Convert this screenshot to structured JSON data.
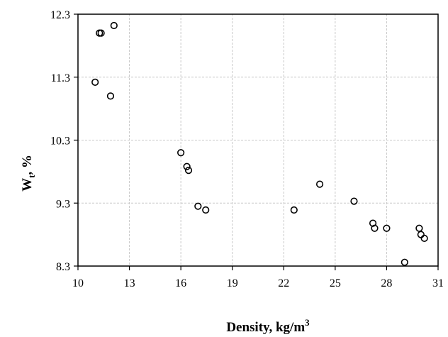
{
  "chart_data": {
    "type": "scatter",
    "title": "",
    "xlabel": "Density, kg/m",
    "xlabel_superscript": "3",
    "ylabel": "W",
    "ylabel_subscript": "t",
    "ylabel_suffix": ",  %",
    "xlim": [
      10,
      31
    ],
    "ylim": [
      8.3,
      12.3
    ],
    "x_ticks": [
      10,
      13,
      16,
      19,
      22,
      25,
      28,
      31
    ],
    "y_ticks": [
      8.3,
      9.3,
      10.3,
      11.3,
      12.3
    ],
    "x_tick_labels": [
      "10",
      "13",
      "16",
      "19",
      "22",
      "25",
      "28",
      "31"
    ],
    "y_tick_labels": [
      "8.3",
      "9.3",
      "10.3",
      "11.3",
      "12.3"
    ],
    "grid": true,
    "legend": false,
    "marker": "open-circle",
    "marker_color": "#000000",
    "points": [
      {
        "x": 11.0,
        "y": 11.22
      },
      {
        "x": 11.25,
        "y": 12.0
      },
      {
        "x": 11.35,
        "y": 12.0
      },
      {
        "x": 11.9,
        "y": 11.0
      },
      {
        "x": 12.1,
        "y": 12.12
      },
      {
        "x": 16.0,
        "y": 10.1
      },
      {
        "x": 16.35,
        "y": 9.88
      },
      {
        "x": 16.45,
        "y": 9.82
      },
      {
        "x": 17.0,
        "y": 9.25
      },
      {
        "x": 17.45,
        "y": 9.19
      },
      {
        "x": 22.6,
        "y": 9.19
      },
      {
        "x": 24.1,
        "y": 9.6
      },
      {
        "x": 26.1,
        "y": 9.33
      },
      {
        "x": 27.2,
        "y": 8.98
      },
      {
        "x": 27.3,
        "y": 8.9
      },
      {
        "x": 28.0,
        "y": 8.9
      },
      {
        "x": 29.05,
        "y": 8.36
      },
      {
        "x": 29.9,
        "y": 8.9
      },
      {
        "x": 30.0,
        "y": 8.8
      },
      {
        "x": 30.2,
        "y": 8.74
      }
    ]
  }
}
